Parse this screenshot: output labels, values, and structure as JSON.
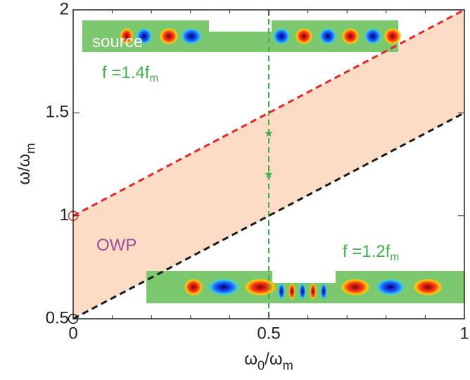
{
  "chart_data": {
    "type": "line",
    "x": [
      0,
      1
    ],
    "series": [
      {
        "color": "#e8252a",
        "values": [
          1,
          2
        ]
      },
      {
        "color": "#1a1a1a",
        "values": [
          0.5,
          1.5
        ]
      }
    ],
    "band_color": "#fcdcc4",
    "start_marker": "circle",
    "vline": {
      "value": 0.5,
      "color": "#3cb44b"
    },
    "points": {
      "x": [
        0.5,
        0.5
      ],
      "values": [
        1.4,
        1.2
      ],
      "color": "#3cb44b"
    },
    "xlim": [
      0,
      1
    ],
    "ylim": [
      0.5,
      2
    ],
    "xticks": [
      0,
      0.5,
      1
    ],
    "yticks": [
      0.5,
      1,
      1.5,
      2
    ],
    "xminor_ticks": [
      0.1,
      0.2,
      0.3,
      0.4,
      0.6,
      0.7,
      0.8,
      0.9
    ],
    "xlabel": [
      {
        "t": "ω"
      },
      {
        "t": "0",
        "sub": true
      },
      {
        "t": "/ω"
      },
      {
        "t": "m",
        "sub": true
      }
    ],
    "ylabel": [
      {
        "t": "ω/ω"
      },
      {
        "t": "m",
        "sub": true
      }
    ],
    "annotations": [
      {
        "parts": [
          {
            "t": "source"
          }
        ],
        "color": "#ffffff"
      },
      {
        "parts": [
          {
            "t": "f =1.4f"
          },
          {
            "t": "m",
            "sub": true
          }
        ],
        "color": "#3cb44b"
      },
      {
        "parts": [
          {
            "t": "f =1.2f"
          },
          {
            "t": "m",
            "sub": true
          }
        ],
        "color": "#3cb44b"
      },
      {
        "parts": [
          {
            "t": "OWP"
          }
        ],
        "color": "#9b4f9b"
      }
    ]
  }
}
